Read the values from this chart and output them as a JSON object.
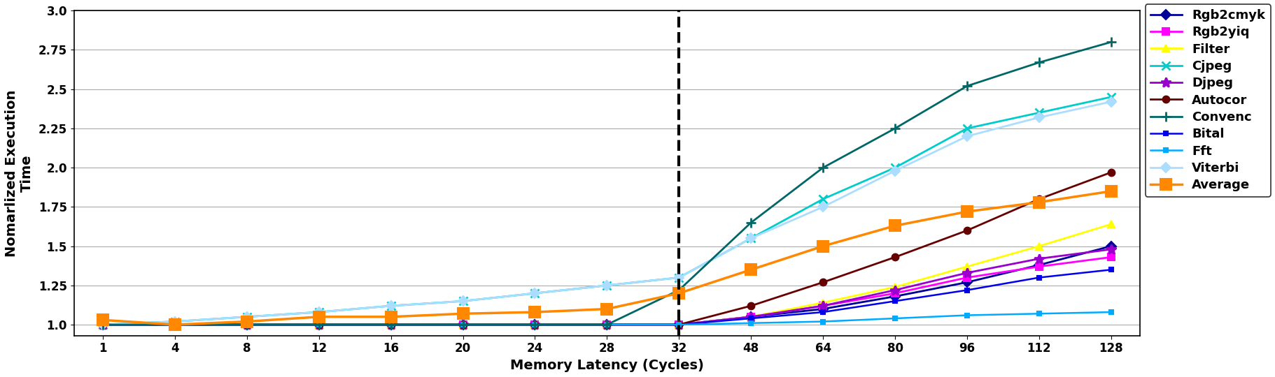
{
  "x_labels": [
    1,
    4,
    8,
    12,
    16,
    20,
    24,
    28,
    32,
    48,
    64,
    80,
    96,
    112,
    128
  ],
  "series_order": [
    "Rgb2cmyk",
    "Rgb2yiq",
    "Filter",
    "Cjpeg",
    "Djpeg",
    "Autocor",
    "Convenc",
    "Bital",
    "Fft",
    "Viterbi",
    "Average"
  ],
  "series": {
    "Rgb2cmyk": {
      "color": "#000099",
      "marker": "D",
      "markersize": 7,
      "linewidth": 2.0,
      "values": [
        1.0,
        1.0,
        1.0,
        1.0,
        1.0,
        1.0,
        1.0,
        1.0,
        1.0,
        1.05,
        1.1,
        1.18,
        1.27,
        1.38,
        1.5
      ]
    },
    "Rgb2yiq": {
      "color": "#ff00ff",
      "marker": "s",
      "markersize": 7,
      "linewidth": 2.0,
      "values": [
        1.0,
        1.0,
        1.0,
        1.0,
        1.0,
        1.0,
        1.0,
        1.0,
        1.0,
        1.05,
        1.12,
        1.2,
        1.3,
        1.37,
        1.43
      ]
    },
    "Filter": {
      "color": "#ffff00",
      "marker": "^",
      "markersize": 7,
      "linewidth": 2.0,
      "values": [
        1.0,
        1.0,
        1.0,
        1.0,
        1.0,
        1.0,
        1.0,
        1.0,
        1.0,
        1.05,
        1.14,
        1.24,
        1.37,
        1.5,
        1.64
      ]
    },
    "Cjpeg": {
      "color": "#00cccc",
      "marker": "x",
      "markersize": 9,
      "linewidth": 2.0,
      "values": [
        1.0,
        1.02,
        1.05,
        1.08,
        1.12,
        1.15,
        1.2,
        1.25,
        1.3,
        1.55,
        1.8,
        2.0,
        2.25,
        2.35,
        2.45
      ]
    },
    "Djpeg": {
      "color": "#9900cc",
      "marker": "*",
      "markersize": 10,
      "linewidth": 2.0,
      "values": [
        1.0,
        1.0,
        1.0,
        1.0,
        1.0,
        1.0,
        1.0,
        1.0,
        1.0,
        1.05,
        1.12,
        1.22,
        1.33,
        1.42,
        1.48
      ]
    },
    "Autocor": {
      "color": "#660000",
      "marker": "o",
      "markersize": 7,
      "linewidth": 2.0,
      "values": [
        1.0,
        1.0,
        1.0,
        1.0,
        1.0,
        1.0,
        1.0,
        1.0,
        1.0,
        1.12,
        1.27,
        1.43,
        1.6,
        1.8,
        1.97
      ]
    },
    "Convenc": {
      "color": "#006666",
      "marker": "+",
      "markersize": 10,
      "linewidth": 2.0,
      "values": [
        1.0,
        1.0,
        1.0,
        1.0,
        1.0,
        1.0,
        1.0,
        1.0,
        1.22,
        1.65,
        2.0,
        2.25,
        2.52,
        2.67,
        2.8
      ]
    },
    "Bital": {
      "color": "#0000ee",
      "marker": "s",
      "markersize": 5,
      "linewidth": 1.8,
      "values": [
        1.0,
        1.0,
        1.0,
        1.0,
        1.0,
        1.0,
        1.0,
        1.0,
        1.0,
        1.04,
        1.08,
        1.15,
        1.22,
        1.3,
        1.35
      ]
    },
    "Fft": {
      "color": "#00aaff",
      "marker": "s",
      "markersize": 5,
      "linewidth": 1.8,
      "values": [
        1.0,
        1.0,
        1.0,
        1.0,
        1.0,
        1.0,
        1.0,
        1.0,
        1.0,
        1.01,
        1.02,
        1.04,
        1.06,
        1.07,
        1.08
      ]
    },
    "Viterbi": {
      "color": "#aaddff",
      "marker": "D",
      "markersize": 7,
      "linewidth": 2.0,
      "values": [
        1.0,
        1.02,
        1.05,
        1.08,
        1.12,
        1.15,
        1.2,
        1.25,
        1.3,
        1.55,
        1.75,
        1.98,
        2.2,
        2.32,
        2.42
      ]
    },
    "Average": {
      "color": "#ff8800",
      "marker": "s",
      "markersize": 11,
      "linewidth": 2.5,
      "values": [
        1.03,
        1.0,
        1.02,
        1.05,
        1.05,
        1.07,
        1.08,
        1.1,
        1.2,
        1.35,
        1.5,
        1.63,
        1.72,
        1.78,
        1.85
      ]
    }
  },
  "xlabel": "Memory Latency (Cycles)",
  "ylabel": "Nomarlized Execution\nTime",
  "ylim": [
    0.93,
    3.0
  ],
  "yticks": [
    1.0,
    1.25,
    1.5,
    1.75,
    2.0,
    2.25,
    2.5,
    2.75,
    3.0
  ],
  "dashed_line_index": 8,
  "background_color": "#ffffff",
  "grid_color": "#aaaaaa",
  "axis_fontsize": 14,
  "tick_fontsize": 12,
  "legend_fontsize": 13
}
